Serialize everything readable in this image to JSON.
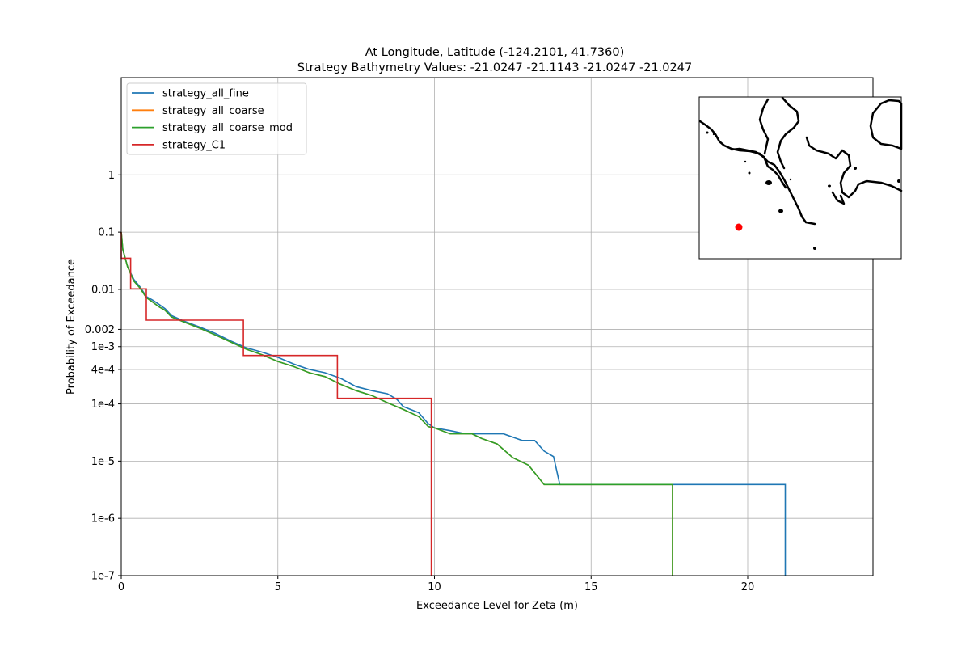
{
  "chart_data": {
    "type": "line",
    "title_lines": [
      "At Longitude, Latitude (-124.2101,  41.7360)",
      "Strategy Bathymetry Values:  -21.0247  -21.1143  -21.0247  -21.0247"
    ],
    "xlabel": "Exceedance Level for Zeta (m)",
    "ylabel": "Probability of Exceedance",
    "xlim": [
      0,
      24
    ],
    "ylim": [
      1e-07,
      50
    ],
    "yscale": "log",
    "grid": true,
    "legend_position": "top-left",
    "x_ticks": [
      {
        "value": 0,
        "label": "0"
      },
      {
        "value": 5,
        "label": "5"
      },
      {
        "value": 10,
        "label": "10"
      },
      {
        "value": 15,
        "label": "15"
      },
      {
        "value": 20,
        "label": "20"
      }
    ],
    "y_ticks": [
      {
        "value": 1,
        "label": "1"
      },
      {
        "value": 0.1,
        "label": "0.1"
      },
      {
        "value": 0.01,
        "label": "0.01"
      },
      {
        "value": 0.002,
        "label": "0.002"
      },
      {
        "value": 0.001,
        "label": "1e-3"
      },
      {
        "value": 0.0004,
        "label": "4e-4"
      },
      {
        "value": 0.0001,
        "label": "1e-4"
      },
      {
        "value": 1e-05,
        "label": "1e-5"
      },
      {
        "value": 1e-06,
        "label": "1e-6"
      },
      {
        "value": 1e-07,
        "label": "1e-7"
      }
    ],
    "series": [
      {
        "name": "strategy_all_fine",
        "color": "#1f77b4",
        "points": [
          [
            0.0,
            0.1
          ],
          [
            0.05,
            0.05
          ],
          [
            0.2,
            0.025
          ],
          [
            0.4,
            0.015
          ],
          [
            0.6,
            0.011
          ],
          [
            0.8,
            0.0075
          ],
          [
            1.0,
            0.0065
          ],
          [
            1.2,
            0.0055
          ],
          [
            1.4,
            0.0046
          ],
          [
            1.6,
            0.0035
          ],
          [
            2.0,
            0.0028
          ],
          [
            2.5,
            0.0022
          ],
          [
            3.0,
            0.0017
          ],
          [
            3.5,
            0.00125
          ],
          [
            4.0,
            0.00095
          ],
          [
            4.5,
            0.0008
          ],
          [
            5.0,
            0.00065
          ],
          [
            5.5,
            0.0005
          ],
          [
            6.0,
            0.0004
          ],
          [
            6.5,
            0.00035
          ],
          [
            7.0,
            0.00028
          ],
          [
            7.5,
            0.0002
          ],
          [
            8.0,
            0.00017
          ],
          [
            8.5,
            0.00015
          ],
          [
            8.8,
            0.00012
          ],
          [
            9.0,
            9e-05
          ],
          [
            9.5,
            7e-05
          ],
          [
            9.8,
            4.5e-05
          ],
          [
            10.0,
            3.8e-05
          ],
          [
            10.5,
            3.4e-05
          ],
          [
            11.0,
            3e-05
          ],
          [
            12.2,
            3e-05
          ],
          [
            12.8,
            2.3e-05
          ],
          [
            13.2,
            2.3e-05
          ],
          [
            13.5,
            1.5e-05
          ],
          [
            13.8,
            1.2e-05
          ],
          [
            14.0,
            3.9e-06
          ],
          [
            21.2,
            3.9e-06
          ],
          [
            21.2,
            1e-07
          ]
        ]
      },
      {
        "name": "strategy_all_coarse",
        "color": "#ff7f0e",
        "points": [
          [
            0.0,
            0.1
          ],
          [
            0.05,
            0.05
          ],
          [
            0.2,
            0.025
          ],
          [
            0.4,
            0.014
          ],
          [
            0.6,
            0.0105
          ],
          [
            0.8,
            0.0072
          ],
          [
            1.0,
            0.006
          ],
          [
            1.2,
            0.005
          ],
          [
            1.4,
            0.0043
          ],
          [
            1.6,
            0.0033
          ],
          [
            2.0,
            0.0027
          ],
          [
            2.5,
            0.0021
          ],
          [
            3.0,
            0.0016
          ],
          [
            3.5,
            0.0012
          ],
          [
            4.0,
            0.0009
          ],
          [
            4.5,
            0.00072
          ],
          [
            5.0,
            0.00055
          ],
          [
            5.5,
            0.00045
          ],
          [
            6.0,
            0.00035
          ],
          [
            6.5,
            0.0003
          ],
          [
            7.0,
            0.00022
          ],
          [
            7.5,
            0.00017
          ],
          [
            8.0,
            0.00014
          ],
          [
            8.5,
            0.000105
          ],
          [
            9.0,
            8e-05
          ],
          [
            9.5,
            6e-05
          ],
          [
            9.8,
            4e-05
          ],
          [
            10.0,
            3.8e-05
          ],
          [
            10.5,
            3e-05
          ],
          [
            11.2,
            3e-05
          ],
          [
            11.5,
            2.5e-05
          ],
          [
            12.0,
            2e-05
          ],
          [
            12.5,
            1.15e-05
          ],
          [
            13.0,
            8.5e-06
          ],
          [
            13.5,
            3.9e-06
          ],
          [
            17.6,
            3.9e-06
          ],
          [
            17.6,
            1e-07
          ]
        ]
      },
      {
        "name": "strategy_all_coarse_mod",
        "color": "#2ca02c",
        "points": [
          [
            0.0,
            0.1
          ],
          [
            0.05,
            0.05
          ],
          [
            0.2,
            0.025
          ],
          [
            0.4,
            0.014
          ],
          [
            0.6,
            0.0105
          ],
          [
            0.8,
            0.0072
          ],
          [
            1.0,
            0.006
          ],
          [
            1.2,
            0.005
          ],
          [
            1.4,
            0.0043
          ],
          [
            1.6,
            0.0033
          ],
          [
            2.0,
            0.0027
          ],
          [
            2.5,
            0.0021
          ],
          [
            3.0,
            0.0016
          ],
          [
            3.5,
            0.0012
          ],
          [
            4.0,
            0.0009
          ],
          [
            4.5,
            0.00072
          ],
          [
            5.0,
            0.00055
          ],
          [
            5.5,
            0.00045
          ],
          [
            6.0,
            0.00035
          ],
          [
            6.5,
            0.0003
          ],
          [
            7.0,
            0.00022
          ],
          [
            7.5,
            0.00017
          ],
          [
            8.0,
            0.00014
          ],
          [
            8.5,
            0.000105
          ],
          [
            9.0,
            8e-05
          ],
          [
            9.5,
            6e-05
          ],
          [
            9.8,
            4e-05
          ],
          [
            10.0,
            3.8e-05
          ],
          [
            10.5,
            3e-05
          ],
          [
            11.2,
            3e-05
          ],
          [
            11.5,
            2.5e-05
          ],
          [
            12.0,
            2e-05
          ],
          [
            12.5,
            1.15e-05
          ],
          [
            13.0,
            8.5e-06
          ],
          [
            13.5,
            3.9e-06
          ],
          [
            17.6,
            3.9e-06
          ],
          [
            17.6,
            1e-07
          ]
        ]
      },
      {
        "name": "strategy_C1",
        "color": "#d62728",
        "points": [
          [
            0.0,
            0.1
          ],
          [
            0.0,
            0.035
          ],
          [
            0.3,
            0.035
          ],
          [
            0.3,
            0.0102
          ],
          [
            0.8,
            0.0102
          ],
          [
            0.8,
            0.0029
          ],
          [
            3.9,
            0.0029
          ],
          [
            3.9,
            0.0007
          ],
          [
            6.9,
            0.0007
          ],
          [
            6.9,
            0.000125
          ],
          [
            9.9,
            0.000125
          ],
          [
            9.9,
            1e-07
          ]
        ]
      }
    ]
  },
  "inset_map": {
    "marker_color": "#ff0000"
  }
}
